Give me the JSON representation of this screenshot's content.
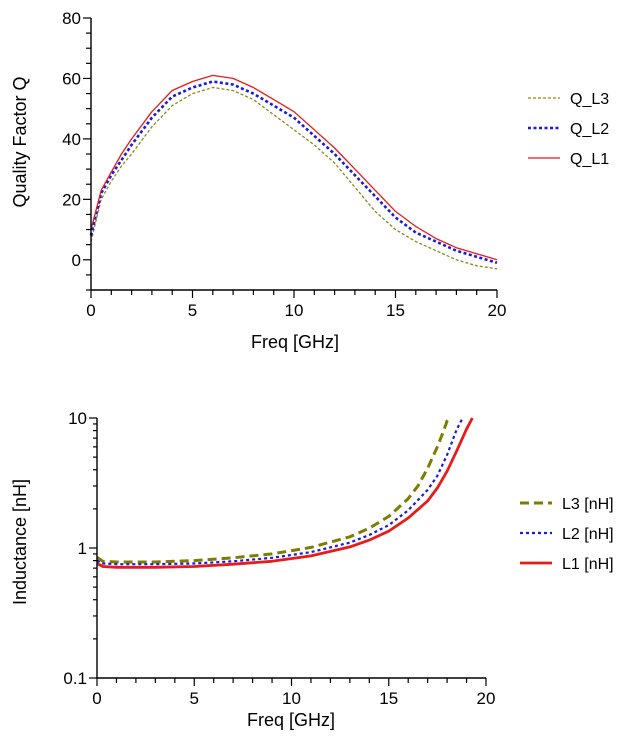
{
  "chart_data": [
    {
      "type": "line",
      "xlabel": "Freq [GHz]",
      "ylabel": "Quality Factor Q",
      "xlim": [
        0,
        20
      ],
      "ylim": [
        -10,
        80
      ],
      "yscale": "linear",
      "xticks": [
        "0",
        "5",
        "10",
        "15",
        "20"
      ],
      "yticks": [
        "0",
        "20",
        "40",
        "60",
        "80"
      ],
      "x": [
        0,
        0.5,
        1,
        1.5,
        2,
        3,
        4,
        5,
        6,
        7,
        8,
        9,
        10,
        11,
        12,
        13,
        14,
        15,
        16,
        17,
        18,
        19,
        20
      ],
      "legend_position": "right",
      "series": [
        {
          "name": "Q_L3",
          "color": "#8a8a1a",
          "style": "dashed-thin",
          "values": [
            6,
            20,
            26,
            31,
            35,
            44,
            51,
            55,
            57,
            56,
            53,
            48,
            43,
            38,
            32,
            24,
            16,
            10,
            6,
            3,
            0,
            -2,
            -3
          ]
        },
        {
          "name": "Q_L2",
          "color": "#1a1adb",
          "style": "dotted-thick",
          "values": [
            8,
            22,
            28,
            33,
            38,
            47,
            54,
            57,
            59,
            58,
            55,
            51,
            47,
            41,
            35,
            28,
            21,
            14,
            9,
            6,
            3,
            1,
            -1
          ]
        },
        {
          "name": "Q_L1",
          "color": "#e81a1a",
          "style": "solid-thin",
          "values": [
            10,
            23,
            29,
            35,
            40,
            49,
            56,
            59,
            61,
            60,
            57,
            53,
            49,
            43,
            37,
            30,
            23,
            16,
            11,
            7,
            4,
            2,
            0
          ]
        }
      ]
    },
    {
      "type": "line",
      "xlabel": "Freq [GHz]",
      "ylabel": "Inductance [nH]",
      "xlim": [
        0,
        20
      ],
      "ylim": [
        0.1,
        10
      ],
      "yscale": "log",
      "xticks": [
        "0",
        "5",
        "10",
        "15",
        "20"
      ],
      "yticks": [
        "0.1",
        "1",
        "10"
      ],
      "legend_position": "right",
      "series": [
        {
          "name": "L3 [nH]",
          "color": "#7d7d00",
          "style": "dashed-thick",
          "x": [
            0,
            0.3,
            1,
            3,
            5,
            7,
            9,
            11,
            13,
            14,
            15,
            16,
            16.5,
            17,
            17.5,
            17.8,
            18,
            18.1
          ],
          "values": [
            0.85,
            0.79,
            0.78,
            0.78,
            0.8,
            0.84,
            0.9,
            1.01,
            1.22,
            1.42,
            1.75,
            2.4,
            3.0,
            4.1,
            6.0,
            7.8,
            9.5,
            10.0
          ]
        },
        {
          "name": "L2 [nH]",
          "color": "#1a1adb",
          "style": "dotted",
          "x": [
            0,
            0.3,
            1,
            3,
            5,
            7,
            9,
            11,
            13,
            14,
            15,
            16,
            17,
            17.5,
            18,
            18.5,
            18.8
          ],
          "values": [
            0.8,
            0.76,
            0.75,
            0.75,
            0.76,
            0.79,
            0.84,
            0.93,
            1.1,
            1.26,
            1.5,
            1.95,
            2.8,
            3.6,
            5.2,
            8.2,
            10.0
          ]
        },
        {
          "name": "L1 [nH]",
          "color": "#e81a1a",
          "style": "solid-thick",
          "x": [
            0,
            0.3,
            1,
            3,
            5,
            7,
            9,
            11,
            13,
            14,
            15,
            16,
            17,
            17.5,
            18,
            18.5,
            19,
            19.3
          ],
          "values": [
            0.76,
            0.72,
            0.71,
            0.71,
            0.72,
            0.75,
            0.79,
            0.87,
            1.02,
            1.15,
            1.35,
            1.7,
            2.3,
            2.9,
            3.9,
            5.6,
            8.2,
            10.0
          ]
        }
      ]
    }
  ]
}
